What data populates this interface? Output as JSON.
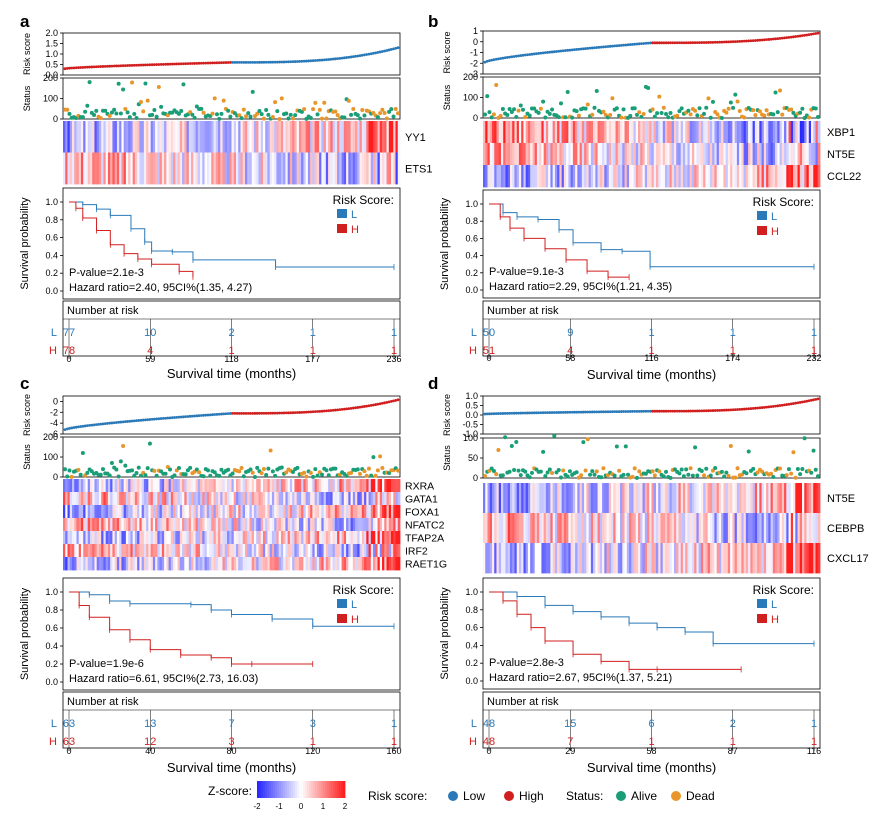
{
  "colors": {
    "low": "#2a79b8",
    "high": "#d11f1f",
    "alive": "#1a9e77",
    "dead": "#e8962c",
    "zlow": "#1a1aff",
    "zhigh": "#ff1a1a"
  },
  "axis_labels": {
    "risk_score": "Risk score",
    "status": "Status",
    "survival": "Survival probability",
    "time": "Survival time (months)",
    "number_at_risk": "Number at risk",
    "legend_title": "Risk Score:",
    "legend_low": "L",
    "legend_high": "H"
  },
  "bottom_legend": {
    "zscore_label": "Z-score:",
    "zscore_ticks": [
      "-2",
      "-1",
      "0",
      "1",
      "2"
    ],
    "risk_label": "Risk score:",
    "low": "Low",
    "high": "High",
    "status_label": "Status:",
    "alive": "Alive",
    "dead": "Dead"
  },
  "chart_data": [
    {
      "panel": "a",
      "type": "line",
      "risk_axis": {
        "ylim": [
          0,
          2.0
        ],
        "ticks": [
          "2.0",
          "1.5",
          "1.0",
          "0.5",
          "0.0"
        ],
        "tick_values": [
          2.0,
          1.5,
          1.0,
          0.5,
          0.0
        ],
        "start": 0.3,
        "mid": 0.6,
        "end": 1.3
      },
      "status_axis": {
        "ylim": [
          0,
          200
        ],
        "ticks": [
          "200",
          "100",
          "0"
        ],
        "tick_values": [
          200,
          100,
          0
        ]
      },
      "genes": [
        "YY1",
        "ETS1"
      ],
      "km": {
        "xmax": 236,
        "xticks": [
          "0",
          "59",
          "118",
          "177",
          "236"
        ],
        "xtick_values": [
          0,
          59,
          118,
          177,
          236
        ],
        "yticks": [
          "1.0",
          "0.8",
          "0.6",
          "0.4",
          "0.2",
          "0.0"
        ],
        "ytick_values": [
          1.0,
          0.8,
          0.6,
          0.4,
          0.2,
          0.0
        ],
        "low": {
          "x": [
            0,
            10,
            20,
            30,
            45,
            55,
            60,
            75,
            90,
            150,
            236
          ],
          "y": [
            1.0,
            0.97,
            0.92,
            0.85,
            0.7,
            0.55,
            0.45,
            0.44,
            0.35,
            0.27,
            0.27
          ]
        },
        "high": {
          "x": [
            0,
            5,
            10,
            20,
            30,
            40,
            50,
            60,
            80,
            90
          ],
          "y": [
            1.0,
            0.93,
            0.82,
            0.68,
            0.52,
            0.42,
            0.36,
            0.3,
            0.22,
            0.16
          ]
        },
        "pvalue": "P-value=2.1e-3",
        "hr": "Hazard ratio=2.40, 95CI%(1.35, 4.27)"
      },
      "risk_table": {
        "L": [
          "77",
          "10",
          "2",
          "1",
          "1"
        ],
        "H": [
          "78",
          "4",
          "1",
          "1",
          "1"
        ]
      }
    },
    {
      "panel": "b",
      "type": "line",
      "risk_axis": {
        "ylim": [
          -3,
          1
        ],
        "ticks": [
          "1",
          "0",
          "-1",
          "-2",
          "-3"
        ],
        "tick_values": [
          1,
          0,
          -1,
          -2,
          -3
        ],
        "start": -1.9,
        "mid": -0.1,
        "end": 0.8
      },
      "status_axis": {
        "ylim": [
          0,
          200
        ],
        "ticks": [
          "200",
          "100",
          "0"
        ],
        "tick_values": [
          200,
          100,
          0
        ]
      },
      "genes": [
        "XBP1",
        "NT5E",
        "CCL22"
      ],
      "km": {
        "xmax": 232,
        "xticks": [
          "0",
          "58",
          "116",
          "174",
          "232"
        ],
        "xtick_values": [
          0,
          58,
          116,
          174,
          232
        ],
        "yticks": [
          "1.0",
          "0.8",
          "0.6",
          "0.4",
          "0.2",
          "0.0"
        ],
        "ytick_values": [
          1.0,
          0.8,
          0.6,
          0.4,
          0.2,
          0.0
        ],
        "low": {
          "x": [
            0,
            10,
            20,
            35,
            50,
            60,
            80,
            95,
            115,
            232
          ],
          "y": [
            1.0,
            0.9,
            0.85,
            0.82,
            0.7,
            0.55,
            0.47,
            0.45,
            0.27,
            0.27
          ]
        },
        "high": {
          "x": [
            0,
            8,
            15,
            25,
            40,
            55,
            70,
            85,
            100
          ],
          "y": [
            1.0,
            0.85,
            0.72,
            0.6,
            0.48,
            0.35,
            0.22,
            0.15,
            0.15
          ]
        },
        "pvalue": "P-value=9.1e-3",
        "hr": "Hazard ratio=2.29, 95CI%(1.21, 4.35)"
      },
      "risk_table": {
        "L": [
          "50",
          "9",
          "1",
          "1",
          "1"
        ],
        "H": [
          "51",
          "4",
          "1",
          "1",
          "1"
        ]
      }
    },
    {
      "panel": "c",
      "type": "line",
      "risk_axis": {
        "ylim": [
          -6,
          1
        ],
        "ticks": [
          "0",
          "-2",
          "-4",
          "-6"
        ],
        "tick_values": [
          0,
          -2,
          -4,
          -6
        ],
        "start": -5.2,
        "mid": -2.2,
        "end": 0.3
      },
      "status_axis": {
        "ylim": [
          0,
          200
        ],
        "ticks": [
          "200",
          "100",
          "0"
        ],
        "tick_values": [
          200,
          100,
          0
        ]
      },
      "genes": [
        "RXRA",
        "GATA1",
        "FOXA1",
        "NFATC2",
        "TFAP2A",
        "IRF2",
        "RAET1G"
      ],
      "km": {
        "xmax": 160,
        "xticks": [
          "0",
          "40",
          "80",
          "120",
          "160"
        ],
        "xtick_values": [
          0,
          40,
          80,
          120,
          160
        ],
        "yticks": [
          "1.0",
          "0.8",
          "0.6",
          "0.4",
          "0.2",
          "0.0"
        ],
        "ytick_values": [
          1.0,
          0.8,
          0.6,
          0.4,
          0.2,
          0.0
        ],
        "low": {
          "x": [
            0,
            10,
            20,
            30,
            60,
            70,
            80,
            100,
            120,
            160
          ],
          "y": [
            1.0,
            0.97,
            0.9,
            0.87,
            0.86,
            0.8,
            0.75,
            0.7,
            0.62,
            0.62
          ]
        },
        "high": {
          "x": [
            0,
            5,
            10,
            20,
            30,
            40,
            55,
            70,
            80,
            90,
            120
          ],
          "y": [
            1.0,
            0.85,
            0.72,
            0.58,
            0.47,
            0.36,
            0.3,
            0.27,
            0.2,
            0.2,
            0.2
          ]
        },
        "pvalue": "P-value=1.9e-6",
        "hr": "Hazard ratio=6.61, 95CI%(2.73, 16.03)"
      },
      "risk_table": {
        "L": [
          "63",
          "13",
          "7",
          "3",
          "1"
        ],
        "H": [
          "63",
          "12",
          "3",
          "1",
          "1"
        ]
      }
    },
    {
      "panel": "d",
      "type": "line",
      "risk_axis": {
        "ylim": [
          -1.0,
          1.0
        ],
        "ticks": [
          "1.0",
          "0.5",
          "0.0",
          "-0.5",
          "-1.0"
        ],
        "tick_values": [
          1.0,
          0.5,
          0.0,
          -0.5,
          -1.0
        ],
        "start": 0.05,
        "mid": 0.2,
        "end": 0.85
      },
      "status_axis": {
        "ylim": [
          0,
          100
        ],
        "ticks": [
          "100",
          "50",
          "0"
        ],
        "tick_values": [
          100,
          50,
          0
        ]
      },
      "genes": [
        "NT5E",
        "CEBPB",
        "CXCL17"
      ],
      "km": {
        "xmax": 116,
        "xticks": [
          "0",
          "29",
          "58",
          "87",
          "116"
        ],
        "xtick_values": [
          0,
          29,
          58,
          87,
          116
        ],
        "yticks": [
          "1.0",
          "0.8",
          "0.6",
          "0.4",
          "0.2",
          "0.0"
        ],
        "ytick_values": [
          1.0,
          0.8,
          0.6,
          0.4,
          0.2,
          0.0
        ],
        "low": {
          "x": [
            0,
            10,
            20,
            30,
            40,
            50,
            60,
            70,
            80,
            116
          ],
          "y": [
            1.0,
            0.95,
            0.85,
            0.78,
            0.72,
            0.65,
            0.6,
            0.55,
            0.42,
            0.42
          ]
        },
        "high": {
          "x": [
            0,
            5,
            10,
            15,
            20,
            30,
            40,
            50,
            60,
            90
          ],
          "y": [
            1.0,
            0.9,
            0.75,
            0.6,
            0.45,
            0.3,
            0.22,
            0.13,
            0.13,
            0.13
          ]
        },
        "pvalue": "P-value=2.8e-3",
        "hr": "Hazard ratio=2.67, 95CI%(1.37, 5.21)"
      },
      "risk_table": {
        "L": [
          "48",
          "15",
          "6",
          "2",
          "1"
        ],
        "H": [
          "48",
          "7",
          "1",
          "1",
          "1"
        ]
      }
    }
  ]
}
